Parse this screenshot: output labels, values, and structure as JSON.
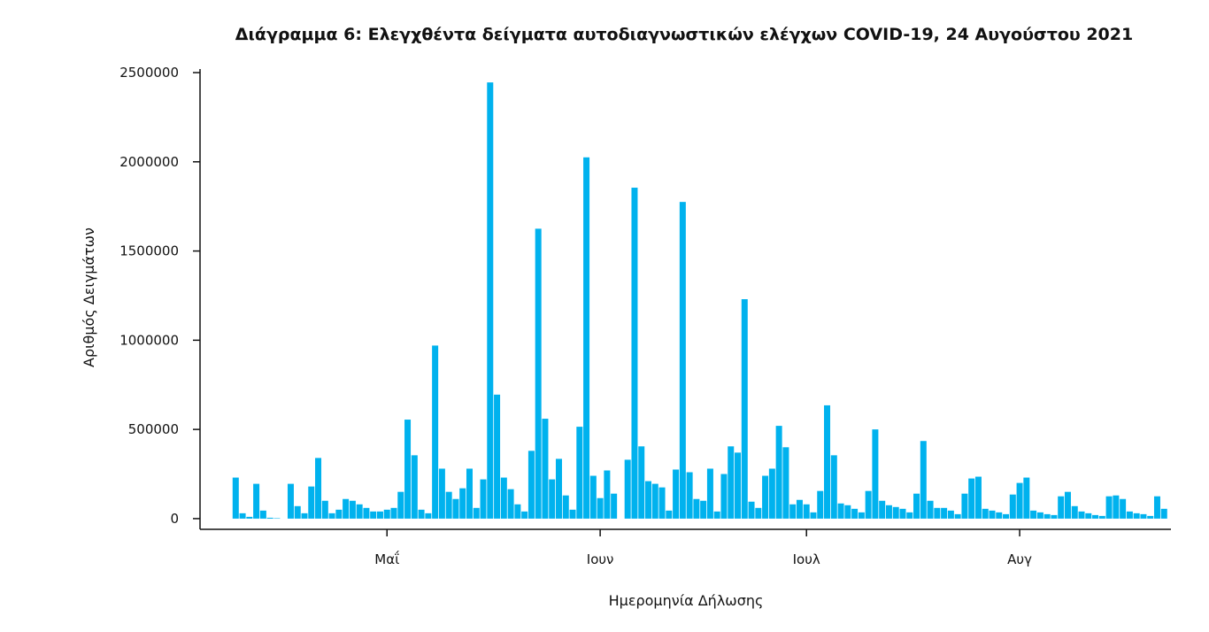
{
  "chart_data": {
    "type": "bar",
    "title": "Διάγραμμα 6: Ελεγχθέντα δείγματα αυτοδιαγνωστικών ελέγχων COVID-19, 24 Αυγούστου 2021",
    "xlabel": "Ημερομηνία Δήλωσης",
    "ylabel": "Αριθμός Δειγμάτων",
    "ylim": [
      -60000,
      2520000
    ],
    "y_ticks": [
      0,
      500000,
      1000000,
      1500000,
      2000000,
      2500000
    ],
    "y_tick_labels": [
      "0",
      "500000",
      "1000000",
      "1500000",
      "2000000",
      "2500000"
    ],
    "x_ticks": [
      {
        "label": "Μαΐ",
        "day": 22
      },
      {
        "label": "Ιουν",
        "day": 53
      },
      {
        "label": "Ιουλ",
        "day": 83
      },
      {
        "label": "Αυγ",
        "day": 114
      }
    ],
    "x_start_date": "2021-04-10",
    "x_end_date": "2021-08-23",
    "bar_color": "#00b2ee",
    "grid": false,
    "legend": "none",
    "values": [
      230000,
      30000,
      10000,
      195000,
      45000,
      5000,
      2000,
      0,
      195000,
      70000,
      30000,
      180000,
      340000,
      100000,
      30000,
      50000,
      110000,
      100000,
      80000,
      60000,
      40000,
      40000,
      50000,
      60000,
      150000,
      555000,
      355000,
      50000,
      30000,
      970000,
      280000,
      150000,
      110000,
      170000,
      280000,
      60000,
      220000,
      2445000,
      695000,
      230000,
      165000,
      80000,
      40000,
      380000,
      1625000,
      560000,
      220000,
      335000,
      130000,
      50000,
      515000,
      2025000,
      240000,
      115000,
      270000,
      140000,
      0,
      330000,
      1855000,
      405000,
      210000,
      195000,
      175000,
      45000,
      275000,
      1775000,
      260000,
      110000,
      100000,
      280000,
      40000,
      250000,
      405000,
      370000,
      1230000,
      95000,
      60000,
      240000,
      280000,
      520000,
      400000,
      80000,
      105000,
      80000,
      35000,
      155000,
      635000,
      355000,
      85000,
      75000,
      55000,
      35000,
      155000,
      500000,
      100000,
      75000,
      65000,
      55000,
      35000,
      140000,
      435000,
      100000,
      60000,
      60000,
      45000,
      25000,
      140000,
      225000,
      235000,
      55000,
      45000,
      35000,
      25000,
      135000,
      200000,
      230000,
      45000,
      35000,
      25000,
      20000,
      125000,
      150000,
      70000,
      40000,
      30000,
      20000,
      15000,
      125000,
      130000,
      110000,
      40000,
      30000,
      25000,
      15000,
      125000,
      55000
    ]
  }
}
